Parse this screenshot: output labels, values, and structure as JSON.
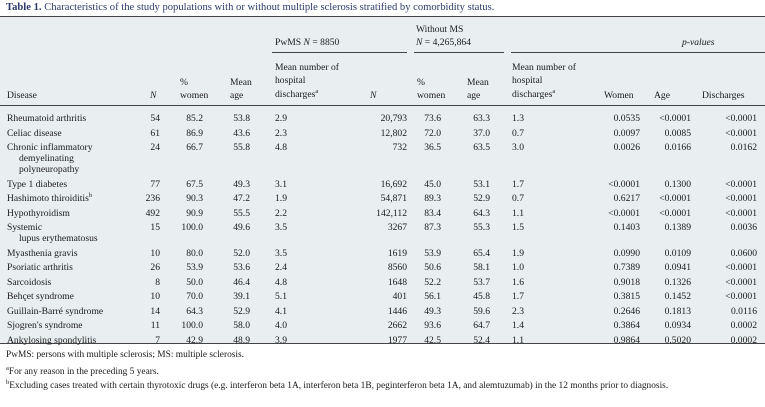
{
  "caption": {
    "label": "Table 1.",
    "text": "Characteristics of the study populations with or without multiple sclerosis stratified by comorbidity status."
  },
  "groups": {
    "pwms": "PwMS N = 8850",
    "without_line1": "Without MS",
    "without_line2": "N = 4,265,864",
    "pvalues": "p-values"
  },
  "headers": {
    "disease": "Disease",
    "n": "N",
    "pct_line1": "%",
    "pct_line2": "women",
    "age_line1": "Mean",
    "age_line2": "age",
    "dis_line1": "Mean number of",
    "dis_line2": "hospital",
    "dis_line3": "discharges",
    "dis_sup": "a",
    "n2": "N",
    "pct2_line1": "%",
    "pct2_line2": "women",
    "age2_line1": "Mean",
    "age2_line2": "age",
    "dis2_line1": "Mean number of",
    "dis2_line2": "hospital",
    "dis2_line3": "discharges",
    "dis2_sup": "a",
    "p_women": "Women",
    "p_age": "Age",
    "p_dis": "Discharges"
  },
  "rows": [
    {
      "disease_lines": [
        "Rheumatoid arthritis"
      ],
      "n": "54",
      "pct": "85.2",
      "age": "53.8",
      "dis": "2.9",
      "n2": "20,793",
      "pct2": "73.6",
      "age2": "63.3",
      "dis2": "1.3",
      "pw": "0.0535",
      "pa": "<0.0001",
      "pd": "<0.0001"
    },
    {
      "disease_lines": [
        "Celiac disease"
      ],
      "n": "61",
      "pct": "86.9",
      "age": "43.6",
      "dis": "2.3",
      "n2": "12,802",
      "pct2": "72.0",
      "age2": "37.0",
      "dis2": "0.7",
      "pw": "0.0097",
      "pa": "0.0085",
      "pd": "<0.0001"
    },
    {
      "disease_lines": [
        "Chronic inflammatory",
        "demyelinating",
        "polyneuropathy"
      ],
      "n": "24",
      "pct": "66.7",
      "age": "55.8",
      "dis": "4.8",
      "n2": "732",
      "pct2": "36.5",
      "age2": "63.5",
      "dis2": "3.0",
      "pw": "0.0026",
      "pa": "0.0166",
      "pd": "0.0162"
    },
    {
      "disease_lines": [
        "Type 1 diabetes"
      ],
      "n": "77",
      "pct": "67.5",
      "age": "49.3",
      "dis": "3.1",
      "n2": "16,692",
      "pct2": "45.0",
      "age2": "53.1",
      "dis2": "1.7",
      "pw": "<0.0001",
      "pa": "0.1300",
      "pd": "<0.0001"
    },
    {
      "disease_lines": [
        "Hashimoto thiroiditis"
      ],
      "sup": "b",
      "n": "236",
      "pct": "90.3",
      "age": "47.2",
      "dis": "1.9",
      "n2": "54,871",
      "pct2": "89.3",
      "age2": "52.9",
      "dis2": "0.7",
      "pw": "0.6217",
      "pa": "<0.0001",
      "pd": "<0.0001"
    },
    {
      "disease_lines": [
        "Hypothyroidism"
      ],
      "n": "492",
      "pct": "90.9",
      "age": "55.5",
      "dis": "2.2",
      "n2": "142,112",
      "pct2": "83.4",
      "age2": "64.3",
      "dis2": "1.1",
      "pw": "<0.0001",
      "pa": "<0.0001",
      "pd": "<0.0001"
    },
    {
      "disease_lines": [
        "Systemic",
        "lupus erythematosus"
      ],
      "n": "15",
      "pct": "100.0",
      "age": "49.6",
      "dis": "3.5",
      "n2": "3267",
      "pct2": "87.3",
      "age2": "55.3",
      "dis2": "1.5",
      "pw": "0.1403",
      "pa": "0.1389",
      "pd": "0.0036"
    },
    {
      "disease_lines": [
        "Myasthenia gravis"
      ],
      "n": "10",
      "pct": "80.0",
      "age": "52.0",
      "dis": "3.5",
      "n2": "1619",
      "pct2": "53.9",
      "age2": "65.4",
      "dis2": "1.9",
      "pw": "0.0990",
      "pa": "0.0109",
      "pd": "0.0600"
    },
    {
      "disease_lines": [
        "Psoriatic arthritis"
      ],
      "n": "26",
      "pct": "53.9",
      "age": "53.6",
      "dis": "2.4",
      "n2": "8560",
      "pct2": "50.6",
      "age2": "58.1",
      "dis2": "1.0",
      "pw": "0.7389",
      "pa": "0.0941",
      "pd": "<0.0001"
    },
    {
      "disease_lines": [
        "Sarcoidosis"
      ],
      "n": "8",
      "pct": "50.0",
      "age": "46.4",
      "dis": "4.8",
      "n2": "1648",
      "pct2": "52.2",
      "age2": "53.7",
      "dis2": "1.6",
      "pw": "0.9018",
      "pa": "0.1326",
      "pd": "<0.0001"
    },
    {
      "disease_lines": [
        "Behçet syndrome"
      ],
      "n": "10",
      "pct": "70.0",
      "age": "39.1",
      "dis": "5.1",
      "n2": "401",
      "pct2": "56.1",
      "age2": "45.8",
      "dis2": "1.7",
      "pw": "0.3815",
      "pa": "0.1452",
      "pd": "<0.0001"
    },
    {
      "disease_lines": [
        "Guillain-Barré syndrome"
      ],
      "n": "14",
      "pct": "64.3",
      "age": "52.9",
      "dis": "4.1",
      "n2": "1446",
      "pct2": "49.3",
      "age2": "59.6",
      "dis2": "2.3",
      "pw": "0.2646",
      "pa": "0.1813",
      "pd": "0.0116"
    },
    {
      "disease_lines": [
        "Sjogren's syndrome"
      ],
      "n": "11",
      "pct": "100.0",
      "age": "58.0",
      "dis": "4.0",
      "n2": "2662",
      "pct2": "93.6",
      "age2": "64.7",
      "dis2": "1.4",
      "pw": "0.3864",
      "pa": "0.0934",
      "pd": "0.0002"
    },
    {
      "disease_lines": [
        "Ankylosing spondylitis"
      ],
      "n": "7",
      "pct": "42.9",
      "age": "48.9",
      "dis": "3.9",
      "n2": "1977",
      "pct2": "42.5",
      "age2": "52.4",
      "dis2": "1.1",
      "pw": "0.9864",
      "pa": "0.5020",
      "pd": "0.0002"
    }
  ],
  "footnotes": {
    "abbrev": "PwMS: persons with multiple sclerosis; MS: multiple sclerosis.",
    "a_mark": "a",
    "a_text": "For any reason in the preceding 5 years.",
    "b_mark": "b",
    "b_text": "Excluding cases treated with certain thyrotoxic drugs (e.g. interferon beta 1A, interferon beta 1B, peginterferon beta 1A, and alemtuzumab) in the 12 months prior to diagnosis."
  }
}
